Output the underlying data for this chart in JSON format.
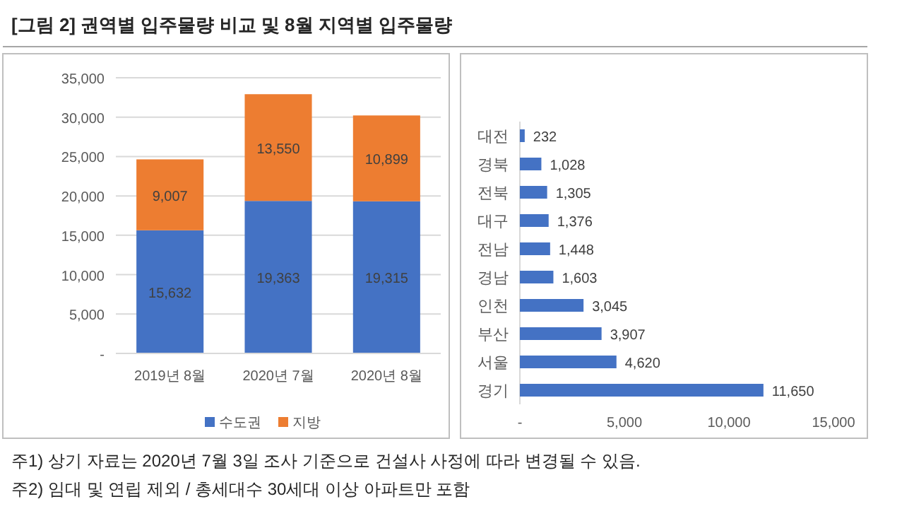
{
  "chart_data": [
    {
      "type": "bar",
      "stacked": true,
      "title": "[그림 2] 권역별 입주물량 비교 및 8월 지역별 입주물량",
      "annotations": [
        "주1) 상기 자료는 2020년 7월 3일 조사 기준으로 건설사 사정에 따라 변경될 수 있음.",
        "주2) 임대 및 연립 제외 / 총세대수 30세대 이상 아파트만 포함"
      ],
      "categories": [
        "2019년 8월",
        "2020년 7월",
        "2020년 8월"
      ],
      "series": [
        {
          "name": "수도권",
          "color": "#4472c4",
          "values": [
            15632,
            19363,
            19315
          ],
          "value_labels": [
            "15,632",
            "19,363",
            "19,315"
          ]
        },
        {
          "name": "지방",
          "color": "#ed7d31",
          "values": [
            9007,
            13550,
            10899
          ],
          "value_labels": [
            "9,007",
            "13,550",
            "10,899"
          ]
        }
      ],
      "ylim": [
        0,
        35000
      ],
      "yticks": [
        {
          "value": 0,
          "label": "-"
        },
        {
          "value": 5000,
          "label": "5,000"
        },
        {
          "value": 10000,
          "label": "10,000"
        },
        {
          "value": 15000,
          "label": "15,000"
        },
        {
          "value": 20000,
          "label": "20,000"
        },
        {
          "value": 25000,
          "label": "25,000"
        },
        {
          "value": 30000,
          "label": "30,000"
        },
        {
          "value": 35000,
          "label": "35,000"
        }
      ],
      "grid": "y",
      "legend": "bottom"
    },
    {
      "type": "bar",
      "orientation": "horizontal",
      "categories": [
        "대전",
        "경북",
        "전북",
        "대구",
        "전남",
        "경남",
        "인천",
        "부산",
        "서울",
        "경기"
      ],
      "values": [
        232,
        1028,
        1305,
        1376,
        1448,
        1603,
        3045,
        3907,
        4620,
        11650
      ],
      "color": "#4472c4",
      "value_labels": [
        "232",
        "1,028",
        "1,305",
        "1,376",
        "1,448",
        "1,603",
        "3,045",
        "3,907",
        "4,620",
        "11,650"
      ],
      "xlim": [
        0,
        15000
      ],
      "xticks": [
        {
          "value": 0,
          "label": "-"
        },
        {
          "value": 5000,
          "label": "5,000"
        },
        {
          "value": 10000,
          "label": "10,000"
        },
        {
          "value": 15000,
          "label": "15,000"
        }
      ]
    }
  ]
}
